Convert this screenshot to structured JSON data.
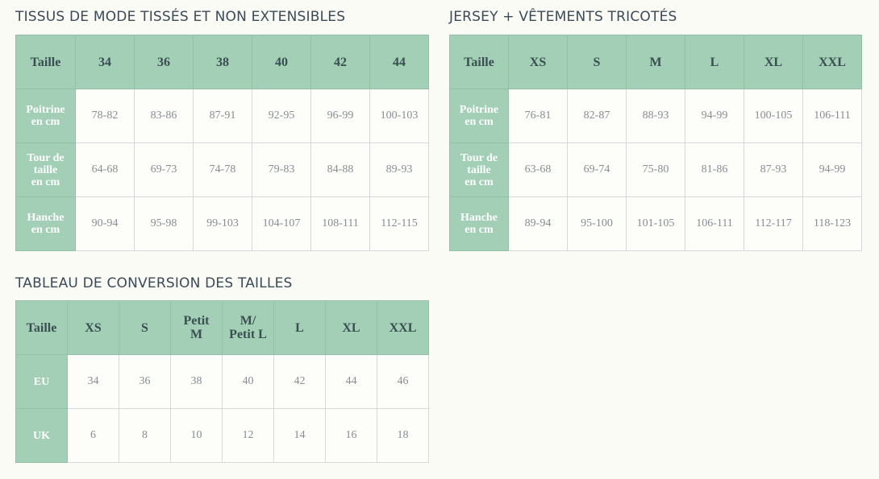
{
  "colors": {
    "header_bg": "#a2cfb6",
    "background": "#fbfbf6",
    "title_text": "#3b4a57"
  },
  "tables": [
    {
      "title": "TISSUS DE MODE TISSÉS ET NON EXTENSIBLES",
      "header": [
        "Taille",
        "34",
        "36",
        "38",
        "40",
        "42",
        "44"
      ],
      "rows": [
        {
          "label": "Poitrine\nen cm",
          "values": [
            "78-82",
            "83-86",
            "87-91",
            "92-95",
            "96-99",
            "100-103"
          ]
        },
        {
          "label": "Tour de\ntaille\nen cm",
          "values": [
            "64-68",
            "69-73",
            "74-78",
            "79-83",
            "84-88",
            "89-93"
          ]
        },
        {
          "label": "Hanche\nen cm",
          "values": [
            "90-94",
            "95-98",
            "99-103",
            "104-107",
            "108-111",
            "112-115"
          ]
        }
      ]
    },
    {
      "title": "JERSEY + VÊTEMENTS TRICOTÉS",
      "header": [
        "Taille",
        "XS",
        "S",
        "M",
        "L",
        "XL",
        "XXL"
      ],
      "rows": [
        {
          "label": "Poitrine\nen cm",
          "values": [
            "76-81",
            "82-87",
            "88-93",
            "94-99",
            "100-105",
            "106-111"
          ]
        },
        {
          "label": "Tour de\ntaille\nen cm",
          "values": [
            "63-68",
            "69-74",
            "75-80",
            "81-86",
            "87-93",
            "94-99"
          ]
        },
        {
          "label": "Hanche\nen cm",
          "values": [
            "89-94",
            "95-100",
            "101-105",
            "106-111",
            "112-117",
            "118-123"
          ]
        }
      ]
    },
    {
      "title": "TABLEAU DE CONVERSION DES TAILLES",
      "header": [
        "Taille",
        "XS",
        "S",
        "Petit\nM",
        "M/\nPetit L",
        "L",
        "XL",
        "XXL"
      ],
      "rows": [
        {
          "label": "EU",
          "values": [
            "34",
            "36",
            "38",
            "40",
            "42",
            "44",
            "46"
          ]
        },
        {
          "label": "UK",
          "values": [
            "6",
            "8",
            "10",
            "12",
            "14",
            "16",
            "18"
          ]
        }
      ]
    }
  ]
}
